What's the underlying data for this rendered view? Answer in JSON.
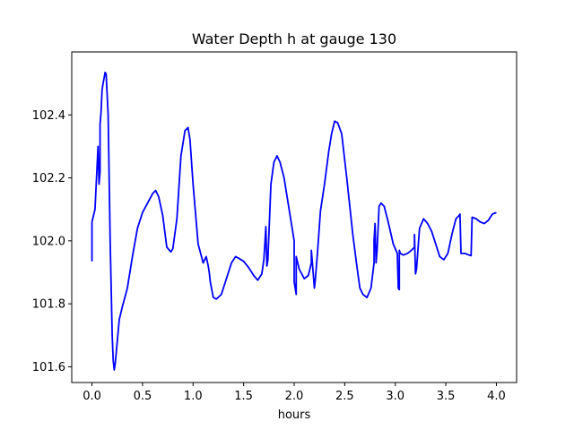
{
  "chart_data": {
    "type": "line",
    "title": "Water Depth h at gauge 130",
    "xlabel": "hours",
    "ylabel": "",
    "xlim": [
      -0.2,
      4.2
    ],
    "ylim": [
      101.55,
      102.6
    ],
    "xticks": [
      0.0,
      0.5,
      1.0,
      1.5,
      2.0,
      2.5,
      3.0,
      3.5,
      4.0
    ],
    "xtick_labels": [
      "0.0",
      "0.5",
      "1.0",
      "1.5",
      "2.0",
      "2.5",
      "3.0",
      "3.5",
      "4.0"
    ],
    "yticks": [
      101.6,
      101.8,
      102.0,
      102.2,
      102.4
    ],
    "ytick_labels": [
      "101.6",
      "101.8",
      "102.0",
      "102.2",
      "102.4"
    ],
    "grid": false,
    "series": [
      {
        "color": "#0000ff",
        "x": [
          0.0,
          0.0,
          0.03,
          0.06,
          0.07,
          0.08,
          0.08,
          0.09,
          0.1,
          0.11,
          0.13,
          0.14,
          0.16,
          0.18,
          0.2,
          0.21,
          0.22,
          0.23,
          0.25,
          0.27,
          0.3,
          0.35,
          0.4,
          0.45,
          0.5,
          0.55,
          0.6,
          0.63,
          0.66,
          0.7,
          0.74,
          0.78,
          0.8,
          0.84,
          0.88,
          0.92,
          0.95,
          0.97,
          1.0,
          1.05,
          1.1,
          1.13,
          1.15,
          1.16,
          1.17,
          1.2,
          1.23,
          1.28,
          1.33,
          1.38,
          1.42,
          1.45,
          1.5,
          1.55,
          1.6,
          1.64,
          1.68,
          1.7,
          1.71,
          1.72,
          1.73,
          1.74,
          1.77,
          1.8,
          1.83,
          1.86,
          1.9,
          1.95,
          2.0,
          2.0,
          2.02,
          2.02,
          2.05,
          2.1,
          2.14,
          2.17,
          2.17,
          2.2,
          2.21,
          2.23,
          2.26,
          2.3,
          2.34,
          2.37,
          2.4,
          2.43,
          2.47,
          2.52,
          2.58,
          2.62,
          2.65,
          2.68,
          2.72,
          2.76,
          2.79,
          2.79,
          2.8,
          2.81,
          2.82,
          2.84,
          2.86,
          2.89,
          2.93,
          2.98,
          3.02,
          3.03,
          3.04,
          3.04,
          3.05,
          3.08,
          3.12,
          3.16,
          3.19,
          3.19,
          3.2,
          3.21,
          3.24,
          3.28,
          3.32,
          3.36,
          3.4,
          3.44,
          3.48,
          3.52,
          3.56,
          3.6,
          3.63,
          3.64,
          3.65,
          3.69,
          3.73,
          3.75,
          3.76,
          3.8,
          3.84,
          3.88,
          3.92,
          3.96,
          4.0
        ],
        "y": [
          101.935,
          102.06,
          102.1,
          102.3,
          102.18,
          102.22,
          102.37,
          102.41,
          102.48,
          102.5,
          102.535,
          102.53,
          102.4,
          102.0,
          101.7,
          101.62,
          101.59,
          101.61,
          101.68,
          101.75,
          101.79,
          101.85,
          101.95,
          102.04,
          102.09,
          102.12,
          102.15,
          102.16,
          102.14,
          102.08,
          101.98,
          101.965,
          101.975,
          102.07,
          102.27,
          102.35,
          102.36,
          102.32,
          102.18,
          101.99,
          101.93,
          101.95,
          101.92,
          101.9,
          101.87,
          101.82,
          101.815,
          101.83,
          101.88,
          101.93,
          101.95,
          101.945,
          101.935,
          101.915,
          101.89,
          101.875,
          101.895,
          101.94,
          101.99,
          102.045,
          101.92,
          101.94,
          102.18,
          102.25,
          102.27,
          102.25,
          102.2,
          102.1,
          102.0,
          101.87,
          101.83,
          101.95,
          101.91,
          101.88,
          101.89,
          101.93,
          101.97,
          101.85,
          101.88,
          101.96,
          102.095,
          102.18,
          102.28,
          102.34,
          102.38,
          102.375,
          102.34,
          102.2,
          102.02,
          101.92,
          101.85,
          101.83,
          101.82,
          101.85,
          101.93,
          102.0,
          102.055,
          101.93,
          101.97,
          102.11,
          102.12,
          102.11,
          102.06,
          101.99,
          101.96,
          101.85,
          101.845,
          101.97,
          101.96,
          101.955,
          101.96,
          101.97,
          101.98,
          102.02,
          101.895,
          101.91,
          102.04,
          102.07,
          102.055,
          102.03,
          101.99,
          101.95,
          101.94,
          101.96,
          102.02,
          102.07,
          102.08,
          102.085,
          101.96,
          101.96,
          101.955,
          101.953,
          102.075,
          102.07,
          102.06,
          102.055,
          102.065,
          102.085,
          102.09
        ]
      }
    ]
  }
}
